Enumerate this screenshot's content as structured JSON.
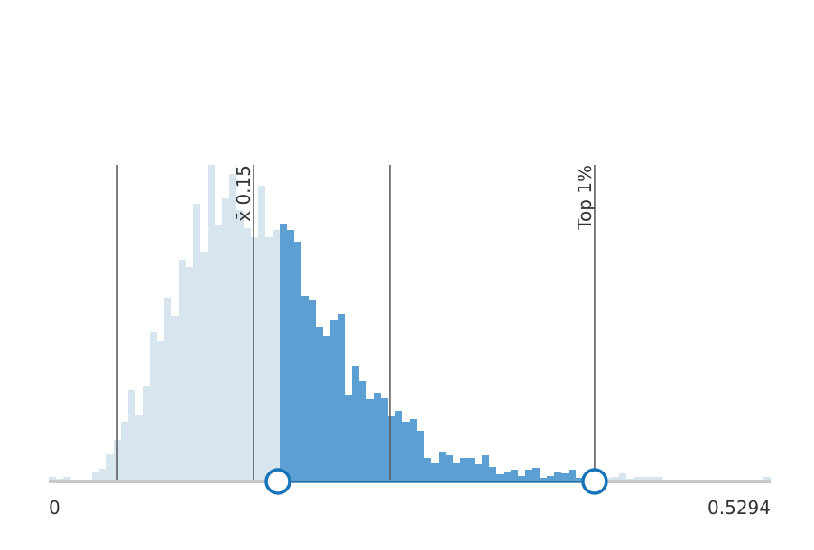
{
  "chart_data": {
    "type": "histogram",
    "bins": [
      0,
      0.005294,
      0.010588,
      0.015882,
      0.021176,
      0.02647,
      0.031764,
      0.037058,
      0.042352,
      0.047646,
      0.05294,
      0.058234,
      0.063528,
      0.068822,
      0.074116,
      0.07941,
      0.084704,
      0.089998,
      0.095292,
      0.100586,
      0.10588,
      0.111174,
      0.116468,
      0.121762,
      0.127056,
      0.13235,
      0.137644,
      0.142938,
      0.148232,
      0.153526,
      0.15882,
      0.164114,
      0.169408,
      0.174702,
      0.179996,
      0.18529,
      0.190584,
      0.195878,
      0.201172,
      0.206466,
      0.21176,
      0.217054,
      0.222348,
      0.227642,
      0.232936,
      0.23823,
      0.243524,
      0.248818,
      0.254112,
      0.259406,
      0.2647,
      0.269994,
      0.275288,
      0.280582,
      0.285876,
      0.29117,
      0.296464,
      0.301758,
      0.307052,
      0.312346,
      0.31764,
      0.322934,
      0.328228,
      0.333522,
      0.338816,
      0.34411,
      0.349404,
      0.354698,
      0.359992,
      0.365286,
      0.37058,
      0.375874,
      0.381168,
      0.386462,
      0.391756,
      0.39705,
      0.402344,
      0.407638,
      0.412932,
      0.418226,
      0.42352,
      0.428814,
      0.434108,
      0.439402,
      0.444696,
      0.44999,
      0.455284,
      0.460578,
      0.465872,
      0.471166,
      0.47646,
      0.481754,
      0.487048,
      0.492342,
      0.497636,
      0.50293,
      0.508224,
      0.513518,
      0.518812,
      0.524106,
      0.5294
    ],
    "values": [
      4,
      2,
      4,
      1,
      0,
      0,
      10,
      13,
      30,
      45,
      65,
      100,
      73,
      105,
      165,
      155,
      203,
      183,
      245,
      237,
      307,
      253,
      350,
      283,
      313,
      340,
      300,
      280,
      270,
      327,
      270,
      278,
      285,
      278,
      265,
      205,
      200,
      170,
      160,
      178,
      185,
      95,
      127,
      110,
      90,
      97,
      92,
      72,
      77,
      65,
      68,
      55,
      25,
      20,
      32,
      28,
      20,
      25,
      25,
      18,
      28,
      15,
      7,
      10,
      12,
      5,
      12,
      14,
      3,
      5,
      10,
      8,
      12,
      3,
      6,
      8,
      4,
      3,
      4,
      8,
      2,
      4,
      4,
      4,
      4,
      0,
      0,
      0,
      0,
      0,
      0,
      0,
      0,
      0,
      0,
      0,
      0,
      0,
      0,
      4
    ],
    "xlim": [
      0,
      0.5294
    ],
    "xticks": [
      0,
      0.5294
    ],
    "ylim": [
      0,
      350
    ],
    "selection": [
      0.1681,
      0.4003
    ],
    "reference_lines": [
      {
        "value": 0.0503
      },
      {
        "value": 0.1502,
        "label": "x̄ 0.15"
      },
      {
        "value": 0.2501
      },
      {
        "value": 0.4003,
        "label": "Top 1%"
      }
    ],
    "color": "#5b9fd3",
    "unselected_color": "#d7e5ef",
    "handle_color": "#1673b8"
  }
}
